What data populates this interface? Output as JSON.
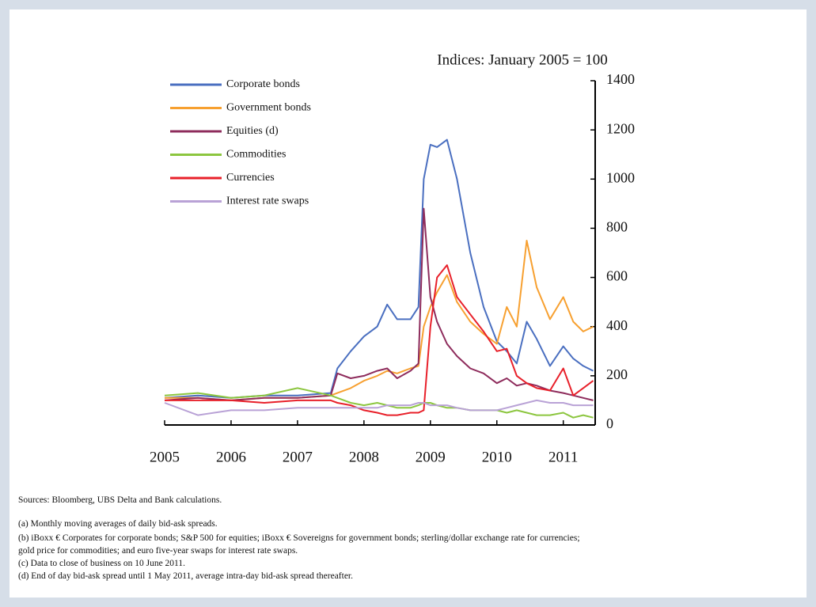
{
  "chart_data": {
    "type": "line",
    "title": "Indices: January 2005 = 100",
    "x": [
      2005,
      2005.5,
      2006,
      2006.5,
      2007,
      2007.5,
      2007.6,
      2007.8,
      2008,
      2008.2,
      2008.35,
      2008.5,
      2008.7,
      2008.82,
      2008.9,
      2009,
      2009.1,
      2009.25,
      2009.4,
      2009.6,
      2009.8,
      2010,
      2010.15,
      2010.3,
      2010.45,
      2010.6,
      2010.8,
      2011,
      2011.15,
      2011.3,
      2011.45
    ],
    "series": [
      {
        "name": "Corporate bonds",
        "color": "#4a6fc0",
        "values": [
          110,
          120,
          110,
          120,
          120,
          130,
          230,
          300,
          360,
          400,
          490,
          430,
          430,
          480,
          1000,
          1140,
          1130,
          1160,
          1000,
          700,
          480,
          340,
          300,
          250,
          420,
          350,
          240,
          320,
          270,
          240,
          220
        ]
      },
      {
        "name": "Government bonds",
        "color": "#f7a030",
        "values": [
          110,
          110,
          100,
          110,
          110,
          120,
          130,
          150,
          180,
          200,
          220,
          210,
          230,
          240,
          400,
          480,
          540,
          610,
          500,
          420,
          370,
          330,
          480,
          400,
          750,
          560,
          430,
          520,
          420,
          380,
          400
        ]
      },
      {
        "name": "Equities (d)",
        "color": "#8e2c5c",
        "values": [
          100,
          110,
          100,
          110,
          110,
          120,
          210,
          190,
          200,
          220,
          230,
          190,
          220,
          250,
          880,
          520,
          420,
          330,
          280,
          230,
          210,
          170,
          190,
          160,
          170,
          160,
          140,
          130,
          120,
          110,
          100
        ]
      },
      {
        "name": "Commodities",
        "color": "#8cc63f",
        "values": [
          120,
          130,
          110,
          120,
          150,
          120,
          110,
          90,
          80,
          90,
          80,
          70,
          70,
          80,
          90,
          90,
          80,
          70,
          70,
          60,
          60,
          60,
          50,
          60,
          50,
          40,
          40,
          50,
          30,
          40,
          30
        ]
      },
      {
        "name": "Currencies",
        "color": "#e8202a",
        "values": [
          100,
          100,
          100,
          90,
          100,
          100,
          90,
          80,
          60,
          50,
          40,
          40,
          50,
          50,
          60,
          400,
          600,
          650,
          520,
          450,
          380,
          300,
          310,
          200,
          170,
          150,
          140,
          230,
          120,
          150,
          180
        ]
      },
      {
        "name": "Interest rate swaps",
        "color": "#b9a2d6",
        "values": [
          90,
          40,
          60,
          60,
          70,
          70,
          70,
          70,
          70,
          70,
          80,
          80,
          80,
          90,
          90,
          80,
          80,
          80,
          70,
          60,
          60,
          60,
          70,
          80,
          90,
          100,
          90,
          90,
          80,
          80,
          80
        ]
      }
    ],
    "xlim": [
      2005,
      2011.48
    ],
    "xticks": [
      2005,
      2006,
      2007,
      2008,
      2009,
      2010,
      2011
    ],
    "ylim": [
      0,
      1400
    ],
    "yticks": [
      0,
      200,
      400,
      600,
      800,
      1000,
      1200,
      1400
    ],
    "sources": "Sources:  Bloomberg, UBS Delta and Bank calculations.",
    "footnotes": [
      "(a) Monthly moving averages of daily bid-ask spreads.",
      "(b) iBoxx € Corporates for corporate bonds; S&P 500 for equities; iBoxx € Sovereigns for government bonds; sterling/dollar exchange rate for currencies;",
      "gold price for commodities; and euro five-year swaps for interest rate swaps.",
      "(c) Data to close of business on 10 June 2011.",
      "(d) End of day bid-ask spread until 1 May 2011, average intra-day bid-ask spread thereafter."
    ]
  }
}
